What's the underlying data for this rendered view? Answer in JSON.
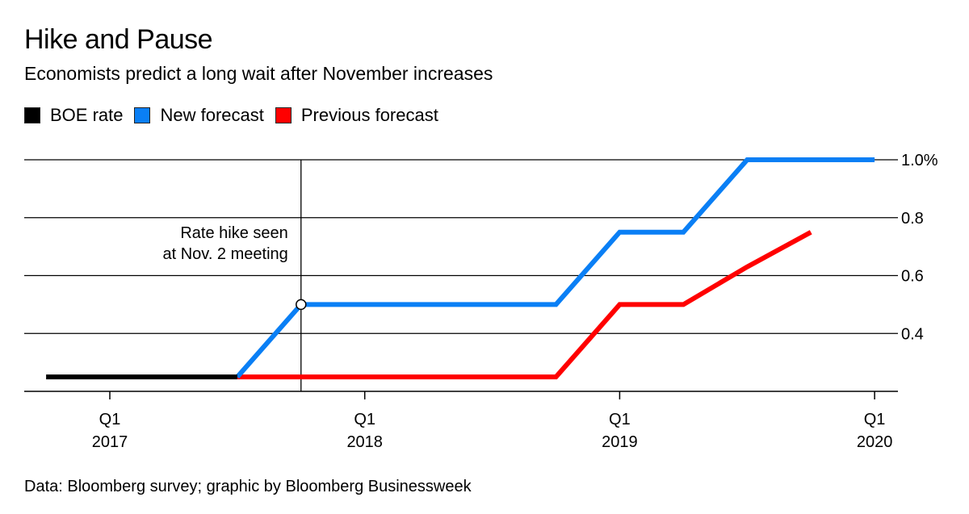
{
  "chart_data": {
    "type": "line",
    "title": "Hike and Pause",
    "subtitle": "Economists predict a long wait after November increases",
    "source": "Data: Bloomberg survey; graphic by Bloomberg Businessweek",
    "xlabel": "",
    "ylabel": "",
    "grid": true,
    "legend_position": "top-left",
    "x_unit": "quarter (years, 2017.0 = Q1 2017)",
    "xlim": [
      2016.65,
      2020.1
    ],
    "ylim": [
      0.2,
      1.0
    ],
    "y_ticks": [
      {
        "value": 1.0,
        "label": "1.0%"
      },
      {
        "value": 0.8,
        "label": "0.8"
      },
      {
        "value": 0.6,
        "label": "0.6"
      },
      {
        "value": 0.4,
        "label": "0.4"
      }
    ],
    "x_ticks": [
      {
        "value": 2017,
        "label1": "Q1",
        "label2": "2017"
      },
      {
        "value": 2018,
        "label1": "Q1",
        "label2": "2018"
      },
      {
        "value": 2019,
        "label1": "Q1",
        "label2": "2019"
      },
      {
        "value": 2020,
        "label1": "Q1",
        "label2": "2020"
      }
    ],
    "series": [
      {
        "name": "BOE rate",
        "color": "#000000",
        "x": [
          2016.75,
          2017.5
        ],
        "y": [
          0.25,
          0.25
        ]
      },
      {
        "name": "New forecast",
        "color": "#0a7ff5",
        "x": [
          2017.5,
          2017.75,
          2018.75,
          2019.0,
          2019.25,
          2019.5,
          2020.0
        ],
        "y": [
          0.25,
          0.5,
          0.5,
          0.75,
          0.75,
          1.0,
          1.0
        ]
      },
      {
        "name": "Previous forecast",
        "color": "#ff0000",
        "x": [
          2017.5,
          2018.75,
          2019.0,
          2019.25,
          2019.5,
          2019.75
        ],
        "y": [
          0.25,
          0.25,
          0.5,
          0.5,
          0.63,
          0.75
        ]
      }
    ],
    "annotations": [
      {
        "x": 2017.75,
        "y": 0.5,
        "lines": [
          "Rate hike seen",
          "at Nov. 2 meeting"
        ]
      }
    ]
  }
}
